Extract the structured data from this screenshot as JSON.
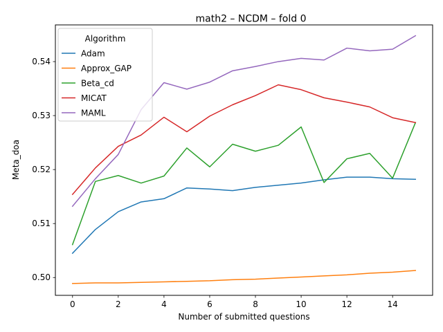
{
  "chart_data": {
    "type": "line",
    "title": "math2 – NCDM – fold 0",
    "xlabel": "Number of submitted questions",
    "ylabel": "Meta_doa",
    "xlim": [
      -0.75,
      15.75
    ],
    "ylim": [
      0.4967,
      0.5468
    ],
    "xticks": [
      0,
      2,
      4,
      6,
      8,
      10,
      12,
      14
    ],
    "yticks": [
      0.5,
      0.51,
      0.52,
      0.53,
      0.54
    ],
    "ytick_labels": [
      "0.50",
      "0.51",
      "0.52",
      "0.53",
      "0.54"
    ],
    "legend_title": "Algorithm",
    "legend_loc": "upper left",
    "x": [
      0,
      1,
      2,
      3,
      4,
      5,
      6,
      7,
      8,
      9,
      10,
      11,
      12,
      13,
      14,
      15
    ],
    "series": [
      {
        "name": "Adam",
        "color": "#1f77b4",
        "values": [
          0.5045,
          0.5089,
          0.5122,
          0.514,
          0.5146,
          0.5166,
          0.5164,
          0.5161,
          0.5167,
          0.5171,
          0.5175,
          0.5181,
          0.5186,
          0.5186,
          0.5183,
          0.5182
        ]
      },
      {
        "name": "Approx_GAP",
        "color": "#ff7f0e",
        "values": [
          0.4989,
          0.499,
          0.499,
          0.4991,
          0.4992,
          0.4993,
          0.4994,
          0.4996,
          0.4997,
          0.4999,
          0.5001,
          0.5003,
          0.5005,
          0.5008,
          0.501,
          0.5013
        ]
      },
      {
        "name": "Beta_cd",
        "color": "#2ca02c",
        "values": [
          0.5061,
          0.5178,
          0.5189,
          0.5175,
          0.5188,
          0.524,
          0.5205,
          0.5247,
          0.5234,
          0.5245,
          0.5279,
          0.5176,
          0.522,
          0.523,
          0.5184,
          0.5287
        ]
      },
      {
        "name": "MICAT",
        "color": "#d62728",
        "values": [
          0.5154,
          0.5203,
          0.5243,
          0.5264,
          0.5297,
          0.527,
          0.5299,
          0.532,
          0.5337,
          0.5357,
          0.5348,
          0.5333,
          0.5325,
          0.5316,
          0.5296,
          0.5287
        ]
      },
      {
        "name": "MAML",
        "color": "#9467bd",
        "values": [
          0.5132,
          0.5183,
          0.5228,
          0.5311,
          0.5361,
          0.5349,
          0.5362,
          0.5383,
          0.5391,
          0.54,
          0.5406,
          0.5403,
          0.5425,
          0.542,
          0.5423,
          0.5448
        ]
      }
    ]
  }
}
